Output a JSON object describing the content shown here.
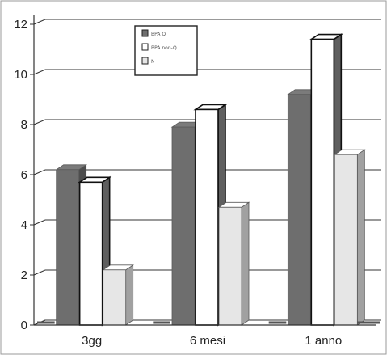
{
  "chart_data": {
    "type": "bar",
    "categories": [
      "3gg",
      "6 mesi",
      "1 anno"
    ],
    "series": [
      {
        "name": "BPA Q",
        "values": [
          6.2,
          7.9,
          9.2
        ],
        "color": "#6e6e6e"
      },
      {
        "name": "BPA non-Q",
        "values": [
          5.7,
          8.6,
          11.4
        ],
        "color": "#ffffff"
      },
      {
        "name": "N",
        "values": [
          2.2,
          4.7,
          6.8
        ],
        "color": "#e6e6e6"
      }
    ],
    "yticks": [
      0,
      2,
      4,
      6,
      8,
      10,
      12
    ],
    "ylim": [
      0,
      12
    ],
    "grid": true,
    "legend_position": "top-center",
    "bar_style": "3d"
  }
}
